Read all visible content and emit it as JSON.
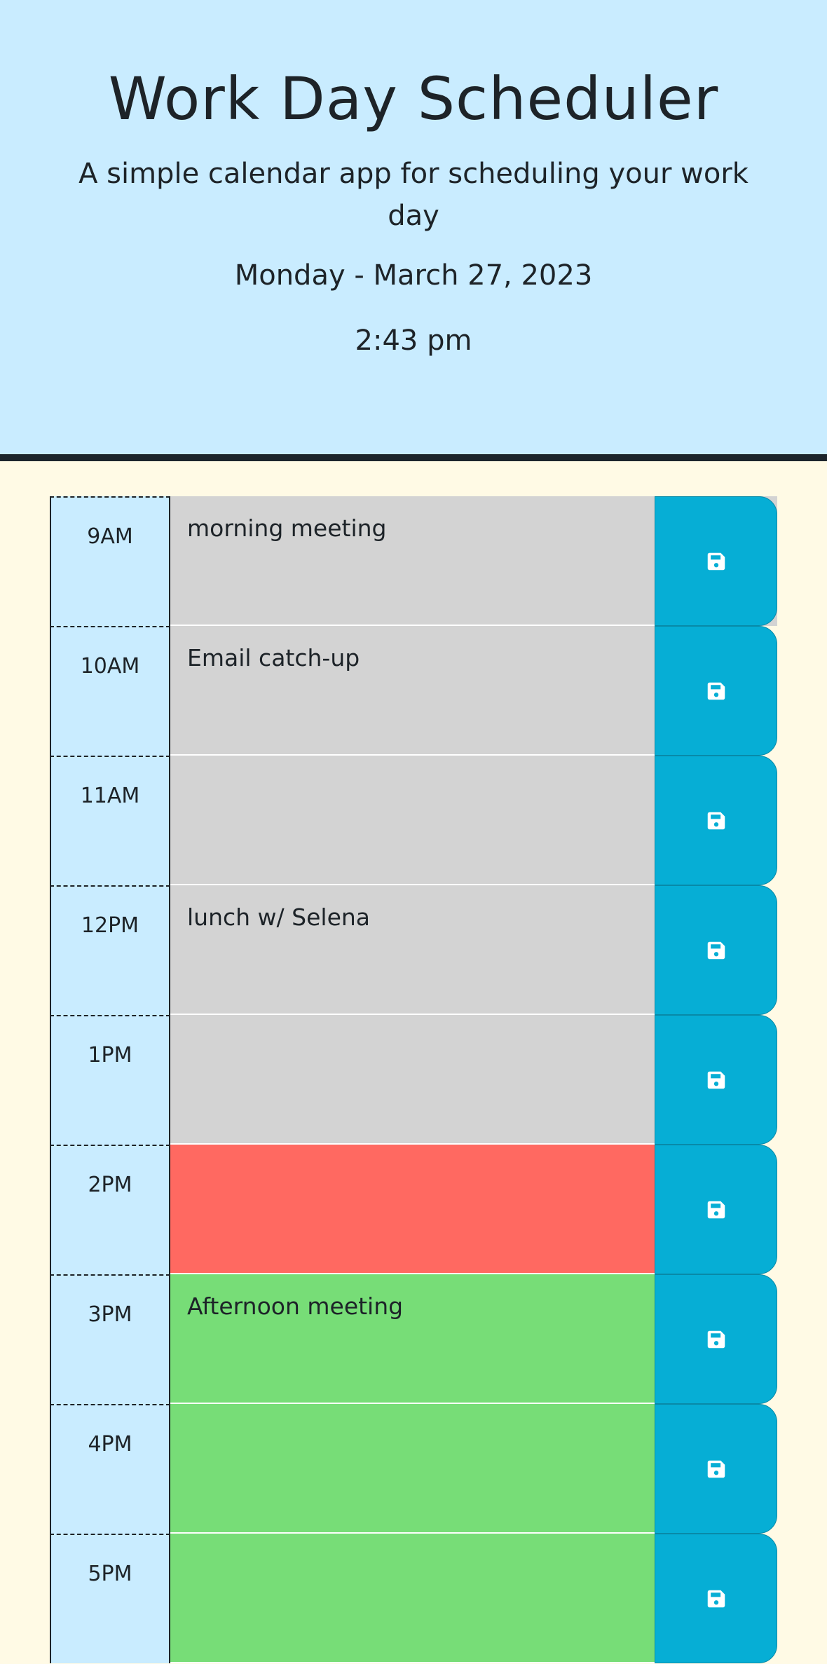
{
  "header": {
    "title": "Work Day Scheduler",
    "subtitle": "A simple calendar app for scheduling your work day",
    "date": "Monday - March 27, 2023",
    "time": "2:43 pm"
  },
  "colors": {
    "past": "#d3d3d3",
    "present": "#ff6961",
    "future": "#77dd77",
    "save_button": "#06aed5",
    "header_background": "#c9ecff",
    "page_background": "#fffae5"
  },
  "save_icon": "floppy-disk-icon",
  "rows": [
    {
      "hour": "9AM",
      "text": "morning meeting",
      "status": "past"
    },
    {
      "hour": "10AM",
      "text": "Email catch-up",
      "status": "past"
    },
    {
      "hour": "11AM",
      "text": "",
      "status": "past"
    },
    {
      "hour": "12PM",
      "text": "lunch w/ Selena",
      "status": "past"
    },
    {
      "hour": "1PM",
      "text": "",
      "status": "past"
    },
    {
      "hour": "2PM",
      "text": "",
      "status": "present"
    },
    {
      "hour": "3PM",
      "text": "Afternoon meeting",
      "status": "future"
    },
    {
      "hour": "4PM",
      "text": "",
      "status": "future"
    },
    {
      "hour": "5PM",
      "text": "",
      "status": "future"
    }
  ]
}
